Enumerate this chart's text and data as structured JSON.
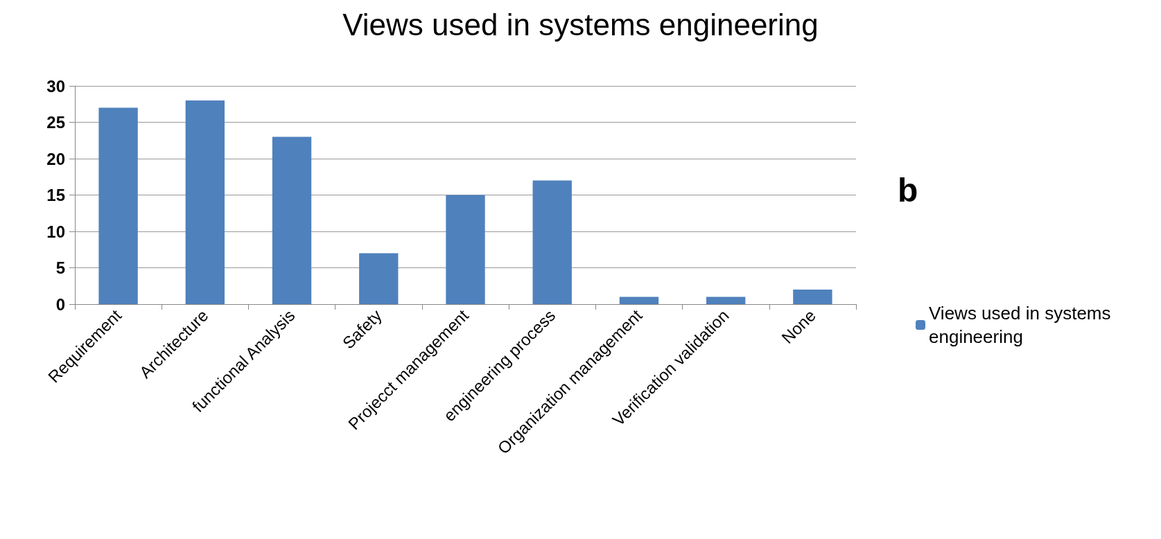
{
  "chart_data": {
    "type": "bar",
    "title": "Views used in systems engineering",
    "categories": [
      "Requirement",
      "Architecture",
      "functional Analysis",
      "Safety",
      "Projecct management",
      "engineering process",
      "Organization management",
      "Verification validation",
      "None"
    ],
    "series": [
      {
        "name": "Views used in systems engineering",
        "color": "#4f81bd",
        "values": [
          27,
          28,
          23,
          7,
          15,
          17,
          1,
          1,
          2
        ]
      }
    ],
    "ylim": [
      0,
      30
    ],
    "yticks": [
      0,
      5,
      10,
      15,
      20,
      25,
      30
    ],
    "grid": "y",
    "legend": "right",
    "annotations": [
      "b"
    ]
  }
}
